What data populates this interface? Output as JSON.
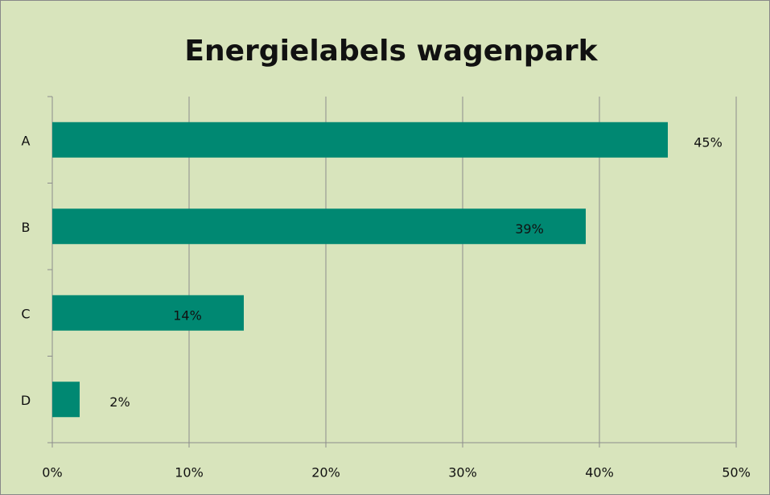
{
  "chart_data": {
    "type": "bar",
    "orientation": "horizontal",
    "title": "Energielabels wagenpark",
    "categories": [
      "A",
      "B",
      "C",
      "D"
    ],
    "values": [
      45,
      39,
      14,
      2
    ],
    "value_labels": [
      "45%",
      "39%",
      "14%",
      "2%"
    ],
    "color": "#008872",
    "xlim": [
      0,
      50
    ],
    "xticks": [
      {
        "value": 0,
        "label": "0%"
      },
      {
        "value": 10,
        "label": "10%"
      },
      {
        "value": 20,
        "label": "20%"
      },
      {
        "value": 30,
        "label": "30%"
      },
      {
        "value": 40,
        "label": "40%"
      },
      {
        "value": 50,
        "label": "50%"
      }
    ],
    "grid": true
  }
}
